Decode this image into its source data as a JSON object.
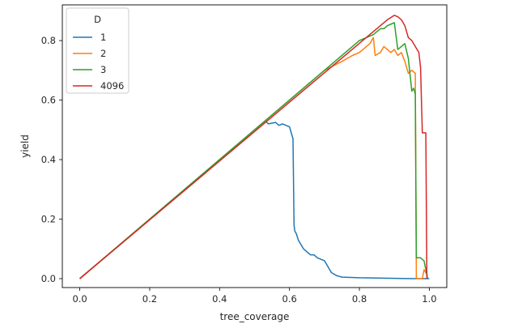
{
  "chart_data": {
    "type": "line",
    "title": "",
    "xlabel": "tree_coverage",
    "ylabel": "yield",
    "xlim": [
      -0.05,
      1.05
    ],
    "ylim": [
      -0.03,
      0.92
    ],
    "xticks": [
      0.0,
      0.2,
      0.4,
      0.6,
      0.8,
      1.0
    ],
    "xtick_labels": [
      "0.0",
      "0.2",
      "0.4",
      "0.6",
      "0.8",
      "1.0"
    ],
    "yticks": [
      0.0,
      0.2,
      0.4,
      0.6,
      0.8
    ],
    "ytick_labels": [
      "0.0",
      "0.2",
      "0.4",
      "0.6",
      "0.8"
    ],
    "grid": false,
    "legend": {
      "title": "D",
      "placement": "upper-left"
    },
    "series": [
      {
        "name": "1",
        "color": "#1f77b4",
        "x": [
          0.0,
          0.53,
          0.54,
          0.56,
          0.57,
          0.58,
          0.59,
          0.6,
          0.605,
          0.61,
          0.613,
          0.615,
          0.62,
          0.625,
          0.63,
          0.64,
          0.65,
          0.66,
          0.67,
          0.68,
          0.7,
          0.71,
          0.72,
          0.735,
          0.75,
          0.8,
          0.85,
          0.9,
          0.95,
          1.0
        ],
        "y": [
          0.0,
          0.53,
          0.52,
          0.525,
          0.515,
          0.52,
          0.515,
          0.51,
          0.49,
          0.47,
          0.18,
          0.16,
          0.15,
          0.13,
          0.12,
          0.1,
          0.09,
          0.08,
          0.08,
          0.07,
          0.06,
          0.04,
          0.02,
          0.01,
          0.005,
          0.003,
          0.002,
          0.001,
          0.0,
          0.0
        ]
      },
      {
        "name": "2",
        "color": "#ff7f0e",
        "x": [
          0.0,
          0.7,
          0.75,
          0.78,
          0.8,
          0.83,
          0.84,
          0.845,
          0.86,
          0.87,
          0.89,
          0.9,
          0.91,
          0.92,
          0.93,
          0.94,
          0.95,
          0.96,
          0.963,
          0.98,
          0.985,
          0.99,
          0.995
        ],
        "y": [
          0.0,
          0.7,
          0.73,
          0.75,
          0.76,
          0.79,
          0.81,
          0.75,
          0.76,
          0.78,
          0.76,
          0.77,
          0.75,
          0.76,
          0.73,
          0.69,
          0.7,
          0.69,
          0.0,
          0.0,
          0.03,
          0.02,
          0.01
        ]
      },
      {
        "name": "3",
        "color": "#2ca02c",
        "x": [
          0.0,
          0.8,
          0.82,
          0.84,
          0.86,
          0.87,
          0.88,
          0.9,
          0.91,
          0.92,
          0.93,
          0.94,
          0.95,
          0.955,
          0.96,
          0.963,
          0.975,
          0.985,
          0.995
        ],
        "y": [
          0.0,
          0.8,
          0.81,
          0.82,
          0.84,
          0.84,
          0.85,
          0.86,
          0.77,
          0.78,
          0.79,
          0.74,
          0.63,
          0.64,
          0.62,
          0.07,
          0.07,
          0.06,
          0.0
        ]
      },
      {
        "name": "4096",
        "color": "#d62728",
        "x": [
          0.0,
          0.88,
          0.9,
          0.91,
          0.92,
          0.93,
          0.94,
          0.95,
          0.96,
          0.97,
          0.975,
          0.98,
          0.99,
          0.993
        ],
        "y": [
          0.0,
          0.87,
          0.885,
          0.88,
          0.87,
          0.85,
          0.81,
          0.8,
          0.78,
          0.76,
          0.71,
          0.49,
          0.49,
          0.0
        ]
      }
    ]
  }
}
